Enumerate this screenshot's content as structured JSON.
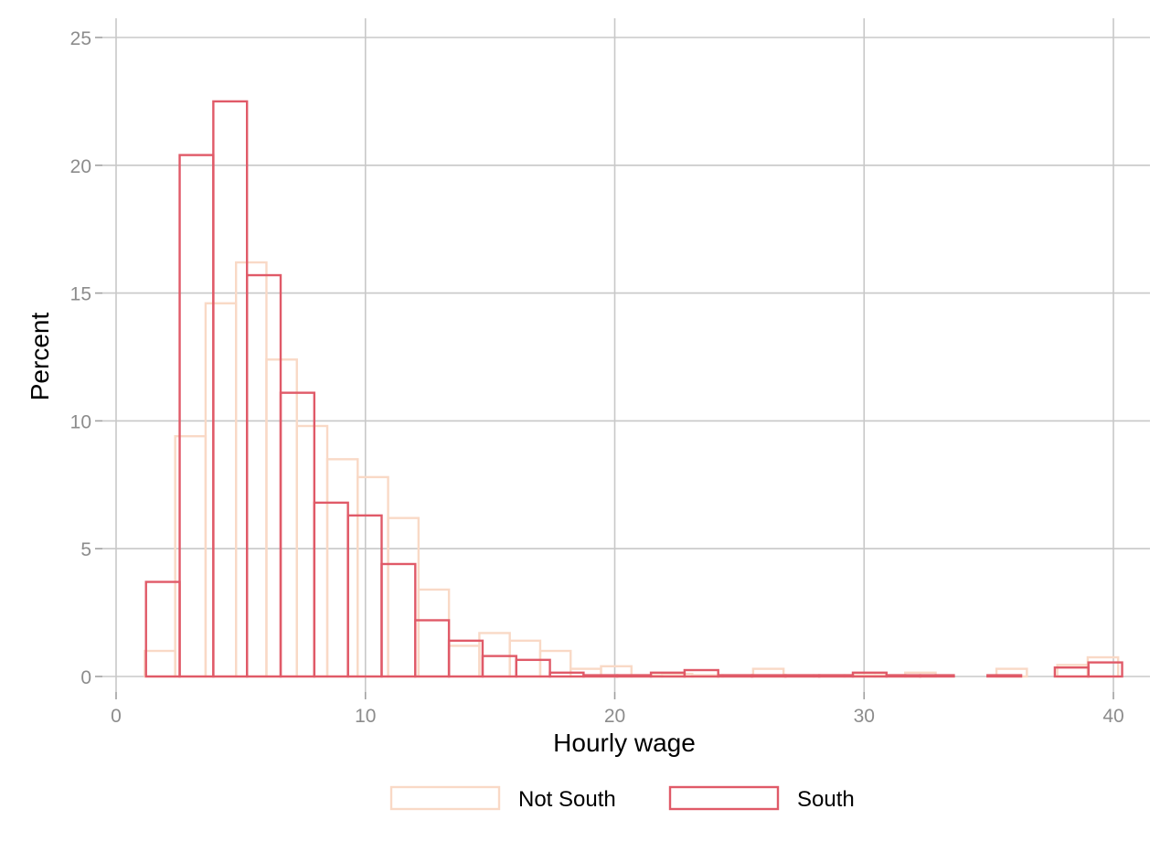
{
  "chart_data": {
    "type": "bar",
    "subtype": "overlaid-histogram-outline",
    "title": "",
    "xlabel": "Hourly wage",
    "ylabel": "Percent",
    "xlim": [
      0,
      41
    ],
    "ylim": [
      0,
      25
    ],
    "x_ticks": [
      0,
      10,
      20,
      30,
      40
    ],
    "y_ticks": [
      0,
      5,
      10,
      15,
      20,
      25
    ],
    "grid": true,
    "legend_position": "bottom",
    "series": [
      {
        "name": "Not South",
        "color": "#f9d9c6",
        "bin_width": 1.22,
        "bins_start": [
          1.15,
          2.37,
          3.59,
          4.81,
          6.03,
          7.25,
          8.47,
          9.69,
          10.91,
          12.13,
          13.35,
          14.57,
          15.79,
          17.01,
          18.23,
          19.45,
          20.67,
          21.89,
          23.11,
          24.33,
          25.55,
          26.77,
          27.99,
          29.21,
          30.43,
          31.65,
          32.87,
          34.09,
          35.31,
          36.53,
          37.75,
          38.97
        ],
        "values": [
          1.0,
          9.4,
          14.6,
          16.2,
          12.4,
          9.8,
          8.5,
          7.8,
          6.2,
          3.4,
          1.2,
          1.7,
          1.4,
          1.0,
          0.3,
          0.4,
          0.05,
          0.1,
          0.05,
          0.05,
          0.3,
          0.05,
          0.05,
          0.05,
          0.05,
          0.15,
          0.0,
          0.0,
          0.3,
          0.0,
          0.45,
          0.75
        ]
      },
      {
        "name": "South",
        "color": "#e05a68",
        "bin_width": 1.35,
        "bins_start": [
          1.2,
          2.55,
          3.9,
          5.25,
          6.6,
          7.95,
          9.3,
          10.65,
          12.0,
          13.35,
          14.7,
          16.05,
          17.4,
          18.75,
          20.1,
          21.45,
          22.8,
          24.15,
          25.5,
          26.85,
          28.2,
          29.55,
          30.9,
          32.25,
          33.6,
          34.95,
          36.3,
          37.65,
          39.0
        ],
        "values": [
          3.7,
          20.4,
          22.5,
          15.7,
          11.1,
          6.8,
          6.3,
          4.4,
          2.2,
          1.4,
          0.8,
          0.65,
          0.15,
          0.05,
          0.05,
          0.15,
          0.25,
          0.05,
          0.05,
          0.05,
          0.05,
          0.15,
          0.05,
          0.05,
          0.0,
          0.05,
          0.0,
          0.35,
          0.55
        ]
      }
    ]
  },
  "legend": {
    "items": [
      {
        "label": "Not South",
        "color": "#f9d9c6"
      },
      {
        "label": "South",
        "color": "#e05a68"
      }
    ]
  }
}
